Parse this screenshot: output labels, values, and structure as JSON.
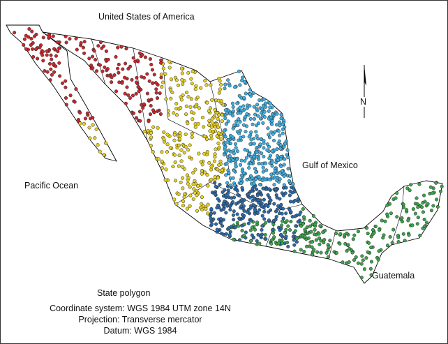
{
  "labels": {
    "north_neighbor": "United States of America",
    "west_sea": "Pacific Ocean",
    "east_sea": "Gulf of Mexico",
    "south_neighbor": "Guatemala",
    "north_arrow": "N"
  },
  "legend": {
    "polygon": "State polygon",
    "coordinate_system": "Coordinate system: WGS 1984 UTM zone 14N",
    "projection": "Projection: Transverse mercator",
    "datum": "Datum: WGS 1984"
  },
  "colors": {
    "cluster_northwest": "#c8282d",
    "cluster_west": "#e6d020",
    "cluster_northeast": "#40aee0",
    "cluster_central": "#2d6aa8",
    "cluster_south": "#3da34c",
    "outline": "#000000"
  }
}
